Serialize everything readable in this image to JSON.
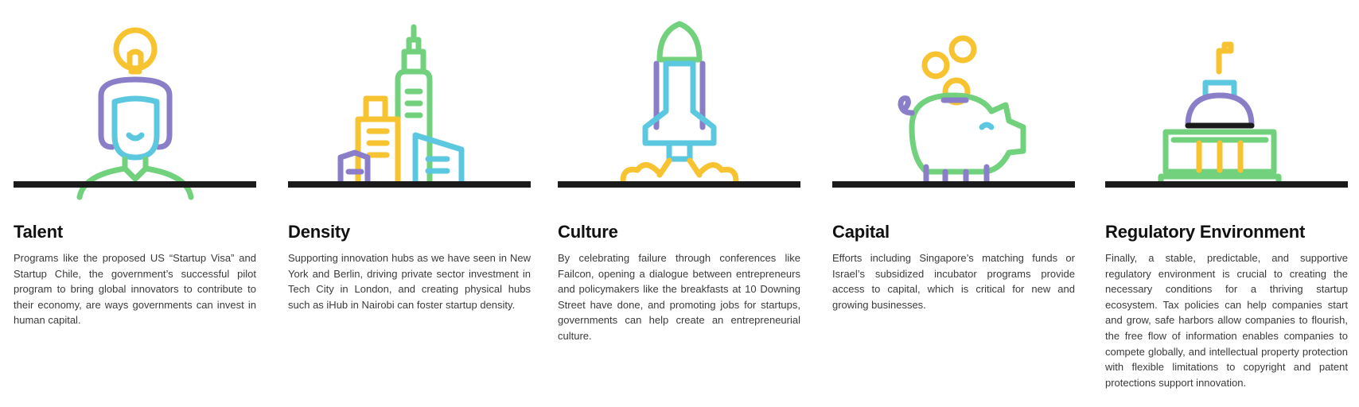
{
  "palette": {
    "yellow": "#F7C330",
    "purple": "#8B7EC8",
    "cyan": "#5BC8E0",
    "green": "#72D17D",
    "ground": "#1b1b1b"
  },
  "columns": [
    {
      "icon": "person-with-lightbulb-icon",
      "title": "Talent",
      "body": "Programs like the proposed US “Startup Visa” and Startup Chile, the government’s successful pilot program to bring global innovators to contribute to their economy, are ways governments can invest in human capital."
    },
    {
      "icon": "city-skyline-icon",
      "title": "Density",
      "body": "Supporting innovation hubs as we have seen in New York and Berlin, driving private sector investment in Tech City in London, and creating physical hubs such as iHub in Nairobi can foster startup density."
    },
    {
      "icon": "rocket-launch-icon",
      "title": "Culture",
      "body": "By celebrating failure through conferences like Failcon, opening a dialogue between entrepreneurs and policymakers like the breakfasts at 10 Downing Street have done, and promoting jobs for startups, governments can help create an entrepreneurial culture."
    },
    {
      "icon": "piggy-bank-icon",
      "title": "Capital",
      "body": "Efforts including Singapore’s matching funds or Israel’s subsidized incubator programs provide access to capital, which is critical for new and growing businesses."
    },
    {
      "icon": "capitol-building-icon",
      "title": "Regulatory Environment",
      "body": "Finally, a stable, predictable, and supportive regulatory environment is crucial to creating the necessary conditions for a thriving startup ecosystem. Tax policies can help companies start and grow, safe harbors allow companies to flourish, the free flow of information enables companies to compete globally, and intellectual property protection with flexible limitations to copyright and patent protections support innovation."
    }
  ]
}
